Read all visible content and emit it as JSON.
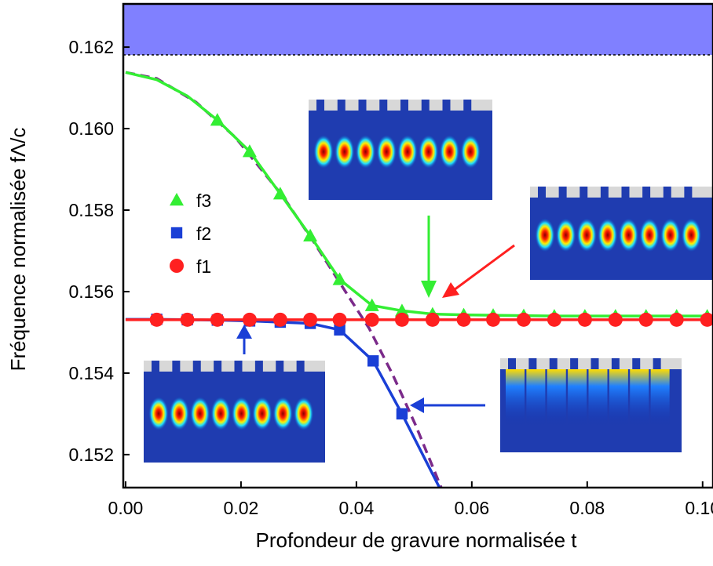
{
  "chart_data": {
    "type": "line",
    "xlabel": "Profondeur de gravure normalisée t",
    "ylabel": "Fréquence normalisée fΛ/c",
    "xlim": [
      -0.0004,
      0.1018
    ],
    "ylim": [
      0.15119,
      0.16306
    ],
    "xticks": [
      {
        "value": 0,
        "label": "0.00"
      },
      0.02,
      0.04,
      0.06,
      0.08,
      {
        "value": 0.1,
        "label": "0.10"
      }
    ],
    "yticks": [
      0.152,
      0.154,
      0.156,
      0.158,
      {
        "value": 0.16,
        "label": "0.160"
      },
      0.162
    ],
    "band": {
      "from": 0.16181,
      "to": 0.16306,
      "color": "#8080ff"
    },
    "series": [
      {
        "name": "f3",
        "color": "#33ee33",
        "marker": "triangle",
        "x": [
          0.0159,
          0.0215,
          0.0268,
          0.032,
          0.0371,
          0.0427,
          0.0479,
          0.0532,
          0.0586,
          0.0637,
          0.069,
          0.0743,
          0.0796,
          0.0849,
          0.0902,
          0.0955,
          0.1008
        ],
        "values": [
          0.16021,
          0.15944,
          0.1584,
          0.15737,
          0.1563,
          0.15566,
          0.15553,
          0.15545,
          0.15543,
          0.15542,
          0.15541,
          0.1554,
          0.1554,
          0.1554,
          0.1554,
          0.1554,
          0.1554
        ],
        "line_x": [
          0,
          0.0054,
          0.0107,
          0.0159,
          0.0215,
          0.0268,
          0.032,
          0.0371,
          0.0427,
          0.0479,
          0.0532,
          0.0586,
          0.0743,
          0.1018
        ],
        "line_values": [
          0.16138,
          0.1612,
          0.1608,
          0.16021,
          0.15944,
          0.1584,
          0.15737,
          0.1563,
          0.15566,
          0.15553,
          0.15545,
          0.15543,
          0.1554,
          0.1554
        ]
      },
      {
        "name": "f2",
        "color": "#1a3fd6",
        "marker": "square",
        "x": [
          0.0054,
          0.0107,
          0.0159,
          0.0215,
          0.0268,
          0.032,
          0.0371,
          0.0429,
          0.0479
        ],
        "values": [
          0.15532,
          0.15531,
          0.1553,
          0.15528,
          0.15525,
          0.15522,
          0.15506,
          0.1543,
          0.153
        ],
        "line_x": [
          0,
          0.0054,
          0.0107,
          0.0159,
          0.0215,
          0.0268,
          0.032,
          0.0371,
          0.0429,
          0.0479,
          0.0544
        ],
        "line_values": [
          0.15532,
          0.15532,
          0.15531,
          0.1553,
          0.15528,
          0.15525,
          0.15522,
          0.15506,
          0.1543,
          0.153,
          0.15119
        ]
      },
      {
        "name": "f1",
        "color": "#ff2020",
        "marker": "circle",
        "x": [
          0.0054,
          0.0107,
          0.0159,
          0.0215,
          0.0268,
          0.032,
          0.0371,
          0.0427,
          0.0479,
          0.0532,
          0.0586,
          0.0637,
          0.069,
          0.0743,
          0.0796,
          0.0849,
          0.0902,
          0.0955,
          0.1008
        ],
        "values": [
          0.15531,
          0.15531,
          0.15531,
          0.15531,
          0.15531,
          0.15531,
          0.15531,
          0.15531,
          0.15531,
          0.15531,
          0.15531,
          0.15531,
          0.15531,
          0.15531,
          0.15531,
          0.15531,
          0.15531,
          0.15531,
          0.15531
        ],
        "line_x": [
          0,
          0.1018
        ],
        "line_values": [
          0.15531,
          0.15531
        ]
      }
    ],
    "curves": [
      {
        "color": "#7b2a8a",
        "dashed": true,
        "x": [
          0,
          0.0054,
          0.0122,
          0.019,
          0.0272,
          0.0327,
          0.0381,
          0.0422,
          0.0463,
          0.0503,
          0.0547
        ],
        "values": [
          0.16138,
          0.16123,
          0.16065,
          0.15979,
          0.15835,
          0.1572,
          0.156,
          0.1551,
          0.15396,
          0.15271,
          0.15119
        ]
      }
    ]
  }
}
